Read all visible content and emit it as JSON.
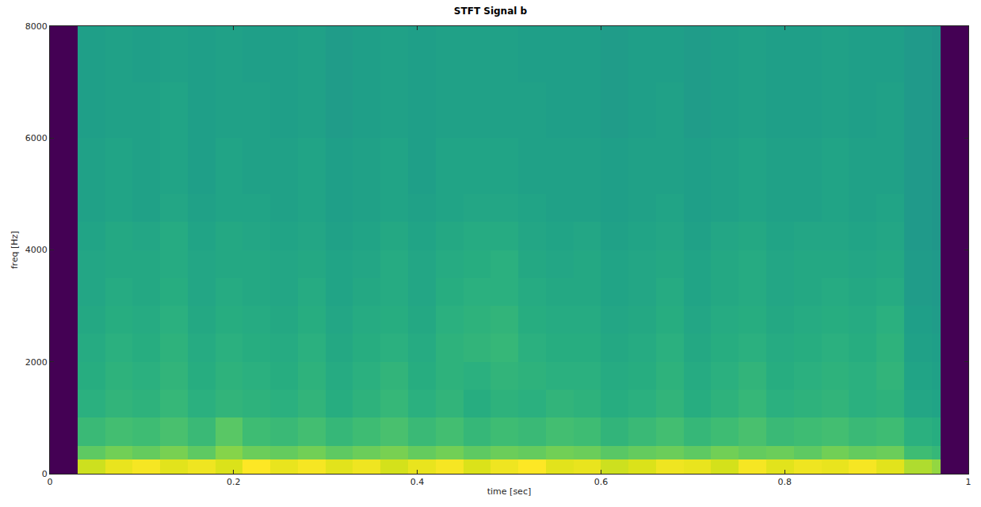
{
  "chart_data": {
    "type": "heatmap",
    "title": "STFT Signal b",
    "x_label": "time [sec]",
    "y_label": "freq [Hz]",
    "color": "Viridis",
    "grid": false,
    "xlim": [
      0,
      1
    ],
    "xticks": [
      0,
      0.2,
      0.4,
      0.6,
      0.8,
      1
    ],
    "ylim": [
      0,
      8000
    ],
    "yticks": [
      0,
      2000,
      4000,
      6000,
      8000
    ],
    "x": [
      0,
      0.03,
      0.06,
      0.09,
      0.12,
      0.15,
      0.18,
      0.21,
      0.24,
      0.27,
      0.3,
      0.33,
      0.36,
      0.39,
      0.42,
      0.45,
      0.48,
      0.51,
      0.54,
      0.57,
      0.6,
      0.63,
      0.66,
      0.69,
      0.72,
      0.75,
      0.78,
      0.81,
      0.84,
      0.87,
      0.9,
      0.93,
      0.96,
      0.97,
      1
    ],
    "y": [
      0,
      250,
      500,
      1000,
      1500,
      2000,
      2500,
      3000,
      3500,
      4000,
      4500,
      5000,
      6000,
      7000,
      8000
    ],
    "z": [
      [
        0,
        8.6,
        9.0,
        9.2,
        8.9,
        9.1,
        8.8,
        9.3,
        9.0,
        9.2,
        8.9,
        9.1,
        8.7,
        9.0,
        9.2,
        8.8,
        9.1,
        9.3,
        8.9,
        9.0,
        8.6,
        8.8,
        9.1,
        9.0,
        8.7,
        9.2,
        8.9,
        9.1,
        9.0,
        9.2,
        8.9,
        8.2,
        7.8,
        0
      ],
      [
        0,
        7.0,
        7.3,
        7.1,
        7.4,
        7.0,
        7.6,
        7.2,
        7.1,
        7.3,
        7.0,
        7.2,
        7.4,
        7.1,
        7.3,
        7.0,
        7.2,
        7.1,
        7.3,
        7.2,
        6.9,
        7.1,
        7.2,
        7.0,
        7.3,
        7.1,
        7.2,
        7.0,
        7.3,
        7.1,
        7.2,
        6.4,
        6.2,
        0
      ],
      [
        0,
        6.3,
        6.5,
        6.4,
        6.6,
        6.3,
        6.9,
        6.4,
        6.3,
        6.5,
        6.2,
        6.4,
        6.6,
        6.3,
        6.5,
        6.2,
        6.4,
        6.3,
        6.5,
        6.4,
        6.1,
        6.3,
        6.5,
        6.2,
        6.4,
        6.6,
        6.3,
        6.4,
        6.5,
        6.3,
        6.4,
        5.9,
        5.8,
        0
      ],
      [
        0,
        5.9,
        6.1,
        6.0,
        6.2,
        5.9,
        6.1,
        6.0,
        5.9,
        6.1,
        5.8,
        6.0,
        6.2,
        5.9,
        6.1,
        5.8,
        6.0,
        5.9,
        6.1,
        6.0,
        5.8,
        5.9,
        6.1,
        5.8,
        6.0,
        6.2,
        5.9,
        6.0,
        6.1,
        5.9,
        6.0,
        5.5,
        5.4,
        0
      ],
      [
        0,
        5.8,
        6.0,
        5.9,
        6.1,
        5.8,
        6.0,
        5.9,
        5.8,
        6.0,
        5.7,
        5.9,
        6.1,
        5.8,
        6.0,
        5.9,
        6.1,
        6.0,
        5.9,
        5.9,
        5.7,
        5.8,
        6.0,
        5.7,
        5.9,
        6.1,
        5.8,
        5.9,
        6.0,
        5.9,
        6.1,
        5.4,
        5.3,
        0
      ],
      [
        0,
        5.7,
        5.9,
        5.8,
        6.0,
        5.7,
        5.9,
        5.8,
        5.7,
        5.9,
        5.6,
        5.8,
        5.9,
        5.7,
        6.0,
        6.1,
        6.2,
        5.9,
        5.8,
        5.8,
        5.6,
        5.7,
        5.9,
        5.6,
        5.8,
        5.9,
        5.7,
        5.8,
        5.9,
        5.8,
        6.0,
        5.3,
        5.2,
        0
      ],
      [
        0,
        5.6,
        5.8,
        5.7,
        5.9,
        5.6,
        5.8,
        5.7,
        5.6,
        5.8,
        5.5,
        5.7,
        5.8,
        5.6,
        5.9,
        6.0,
        6.1,
        5.8,
        5.7,
        5.7,
        5.5,
        5.6,
        5.8,
        5.5,
        5.7,
        5.8,
        5.6,
        5.7,
        5.8,
        5.7,
        5.9,
        5.2,
        5.1,
        0
      ],
      [
        0,
        5.5,
        5.7,
        5.6,
        5.8,
        5.5,
        5.7,
        5.6,
        5.5,
        5.7,
        5.4,
        5.6,
        5.7,
        5.5,
        5.8,
        5.9,
        5.9,
        5.7,
        5.6,
        5.6,
        5.4,
        5.5,
        5.7,
        5.4,
        5.6,
        5.7,
        5.5,
        5.6,
        5.7,
        5.6,
        5.7,
        5.1,
        5.0,
        0
      ],
      [
        0,
        5.5,
        5.6,
        5.6,
        5.7,
        5.5,
        5.6,
        5.6,
        5.5,
        5.6,
        5.4,
        5.5,
        5.7,
        5.5,
        5.7,
        5.8,
        5.9,
        5.6,
        5.5,
        5.6,
        5.4,
        5.5,
        5.6,
        5.4,
        5.6,
        5.7,
        5.5,
        5.6,
        5.6,
        5.5,
        5.6,
        5.1,
        5.0,
        0
      ],
      [
        0,
        5.4,
        5.6,
        5.5,
        5.7,
        5.4,
        5.6,
        5.5,
        5.4,
        5.5,
        5.3,
        5.4,
        5.6,
        5.4,
        5.6,
        5.7,
        5.7,
        5.5,
        5.4,
        5.5,
        5.3,
        5.4,
        5.5,
        5.3,
        5.5,
        5.6,
        5.4,
        5.5,
        5.5,
        5.4,
        5.5,
        5.0,
        4.9,
        0
      ],
      [
        0,
        5.3,
        5.4,
        5.3,
        5.5,
        5.3,
        5.4,
        5.4,
        5.3,
        5.4,
        5.2,
        5.3,
        5.4,
        5.3,
        5.4,
        5.5,
        5.5,
        5.4,
        5.3,
        5.3,
        5.2,
        5.3,
        5.4,
        5.2,
        5.3,
        5.4,
        5.3,
        5.3,
        5.4,
        5.3,
        5.4,
        5.0,
        4.9,
        0
      ],
      [
        0,
        5.3,
        5.4,
        5.3,
        5.4,
        5.2,
        5.4,
        5.3,
        5.3,
        5.4,
        5.2,
        5.3,
        5.4,
        5.2,
        5.4,
        5.4,
        5.4,
        5.3,
        5.3,
        5.3,
        5.2,
        5.3,
        5.3,
        5.2,
        5.3,
        5.4,
        5.3,
        5.3,
        5.4,
        5.3,
        5.3,
        5.0,
        4.9,
        0
      ],
      [
        0,
        5.2,
        5.3,
        5.3,
        5.4,
        5.2,
        5.3,
        5.3,
        5.2,
        5.3,
        5.1,
        5.2,
        5.3,
        5.2,
        5.3,
        5.3,
        5.3,
        5.3,
        5.2,
        5.2,
        5.1,
        5.2,
        5.3,
        5.1,
        5.2,
        5.3,
        5.2,
        5.2,
        5.3,
        5.2,
        5.3,
        5.0,
        4.9,
        0
      ],
      [
        0,
        5.2,
        5.3,
        5.2,
        5.3,
        5.2,
        5.3,
        5.2,
        5.2,
        5.3,
        5.1,
        5.2,
        5.3,
        5.2,
        5.3,
        5.3,
        5.3,
        5.2,
        5.2,
        5.2,
        5.1,
        5.2,
        5.2,
        5.1,
        5.2,
        5.3,
        5.2,
        5.2,
        5.3,
        5.2,
        5.2,
        5.0,
        4.9,
        0
      ]
    ]
  }
}
